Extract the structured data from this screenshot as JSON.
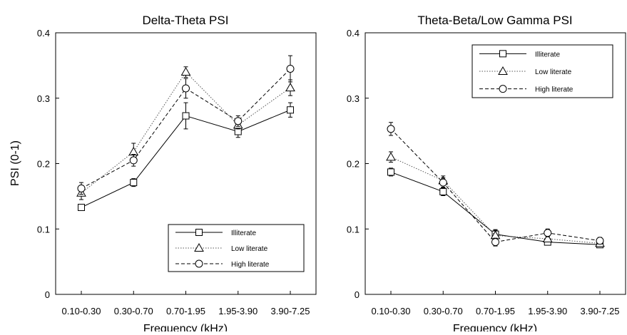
{
  "shared": {
    "ylabel": "PSI (0-1)",
    "xlabel": "Frequency (kHz)"
  },
  "chart_data": [
    {
      "type": "line",
      "title": "Delta-Theta PSI",
      "xlabel": "Frequency (kHz)",
      "ylabel": "PSI (0-1)",
      "categories": [
        "0.10-0.30",
        "0.30-0.70",
        "0.70-1.95",
        "1.95-3.90",
        "3.90-7.25"
      ],
      "ylim": [
        0,
        0.4
      ],
      "yticks": [
        "0",
        "0.1",
        "0.2",
        "0.3",
        "0.4"
      ],
      "grid": false,
      "legend_position": "bottom-right",
      "series": [
        {
          "name": "Illiterate",
          "marker": "square",
          "line": "solid",
          "color": "#000000",
          "values": [
            0.133,
            0.171,
            0.273,
            0.249,
            0.282
          ],
          "errors": [
            0.004,
            0.006,
            0.02,
            0.009,
            0.011
          ]
        },
        {
          "name": "Low literate",
          "marker": "triangle",
          "line": "dotted",
          "color": "#555555",
          "values": [
            0.155,
            0.218,
            0.34,
            0.259,
            0.316
          ],
          "errors": [
            0.01,
            0.013,
            0.008,
            0.006,
            0.012
          ]
        },
        {
          "name": "High literate",
          "marker": "circle",
          "line": "dashed",
          "color": "#000000",
          "values": [
            0.162,
            0.205,
            0.315,
            0.265,
            0.345
          ],
          "errors": [
            0.009,
            0.009,
            0.015,
            0.008,
            0.02
          ]
        }
      ]
    },
    {
      "type": "line",
      "title": "Theta-Beta/Low Gamma PSI",
      "xlabel": "Frequency (kHz)",
      "ylabel": "",
      "categories": [
        "0.10-0.30",
        "0.30-0.70",
        "0.70-1.95",
        "1.95-3.90",
        "3.90-7.25"
      ],
      "ylim": [
        0,
        0.4
      ],
      "yticks": [
        "0",
        "0.1",
        "0.2",
        "0.3",
        "0.4"
      ],
      "grid": false,
      "legend_position": "top-right",
      "series": [
        {
          "name": "Illiterate",
          "marker": "square",
          "line": "solid",
          "color": "#000000",
          "values": [
            0.187,
            0.157,
            0.092,
            0.08,
            0.076
          ],
          "errors": [
            0.006,
            0.006,
            0.007,
            0.004,
            0.003
          ]
        },
        {
          "name": "Low literate",
          "marker": "triangle",
          "line": "dotted",
          "color": "#555555",
          "values": [
            0.21,
            0.174,
            0.09,
            0.085,
            0.078
          ],
          "errors": [
            0.008,
            0.007,
            0.008,
            0.004,
            0.003
          ]
        },
        {
          "name": "High literate",
          "marker": "circle",
          "line": "dashed",
          "color": "#000000",
          "values": [
            0.253,
            0.171,
            0.08,
            0.094,
            0.082
          ],
          "errors": [
            0.01,
            0.007,
            0.006,
            0.006,
            0.005
          ]
        }
      ]
    }
  ]
}
